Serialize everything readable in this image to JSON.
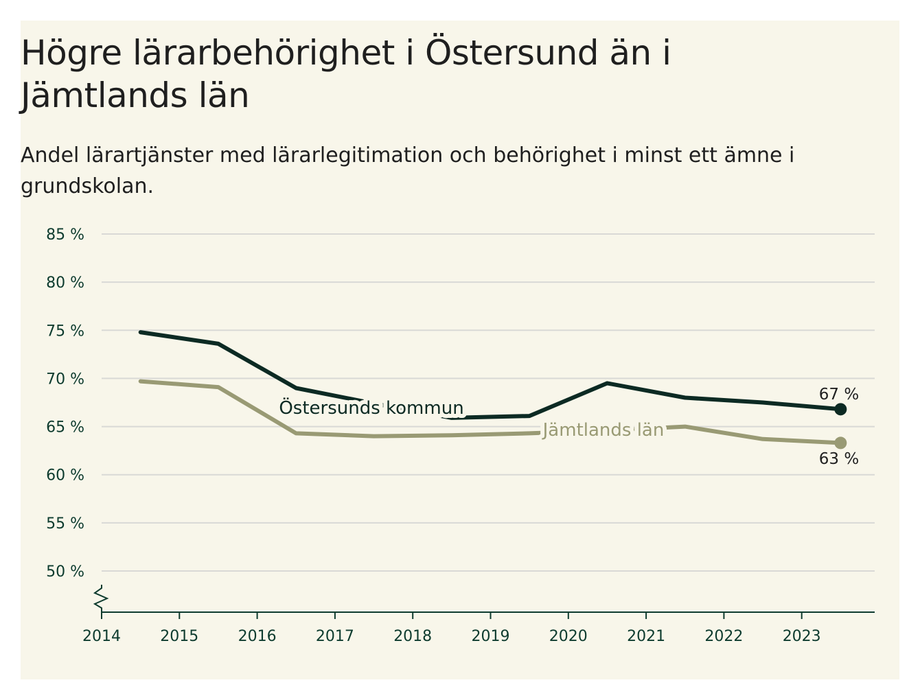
{
  "title": "Högre lärarbehörighet i Östersund än i Jämtlands län",
  "subtitle": "Andel lärartjänster med lärarlegitimation och behörighet i minst ett ämne i grundskolan.",
  "colors": {
    "background": "#f8f6ea",
    "ostersund": "#0c2a23",
    "jamtland": "#999a74",
    "grid": "#d9d9d6",
    "axis": "#0d3b2e"
  },
  "chart_data": {
    "type": "line",
    "title": "Högre lärarbehörighet i Östersund än i Jämtlands län",
    "subtitle": "Andel lärartjänster med lärarlegitimation och behörighet i minst ett ämne i grundskolan.",
    "xlabel": "",
    "ylabel": "",
    "x_tick_labels": [
      "2014",
      "2015",
      "2016",
      "2017",
      "2018",
      "2019",
      "2020",
      "2021",
      "2022",
      "2023"
    ],
    "y_ticks": [
      50,
      55,
      60,
      65,
      70,
      75,
      80,
      85
    ],
    "y_tick_labels": [
      "50 %",
      "55 %",
      "60 %",
      "65 %",
      "70 %",
      "75 %",
      "80 %",
      "85 %"
    ],
    "ylim": [
      45.7,
      85
    ],
    "axis_break": true,
    "grid": true,
    "series": [
      {
        "name": "Östersunds kommun",
        "x": [
          2014.5,
          2015.5,
          2016.5,
          2017.5,
          2018.5,
          2019.5,
          2020.5,
          2021.5,
          2022.5,
          2023.5
        ],
        "values": [
          74.8,
          73.6,
          69.0,
          67.4,
          65.9,
          66.1,
          69.5,
          68.0,
          67.5,
          66.8
        ],
        "end_label": "67 %"
      },
      {
        "name": "Jämtlands län",
        "x": [
          2014.5,
          2015.5,
          2016.5,
          2017.5,
          2018.5,
          2019.5,
          2020.5,
          2021.5,
          2022.5,
          2023.5
        ],
        "values": [
          69.7,
          69.1,
          64.3,
          64.0,
          64.1,
          64.3,
          64.6,
          65.0,
          63.7,
          63.3
        ],
        "end_label": "63 %"
      }
    ]
  }
}
